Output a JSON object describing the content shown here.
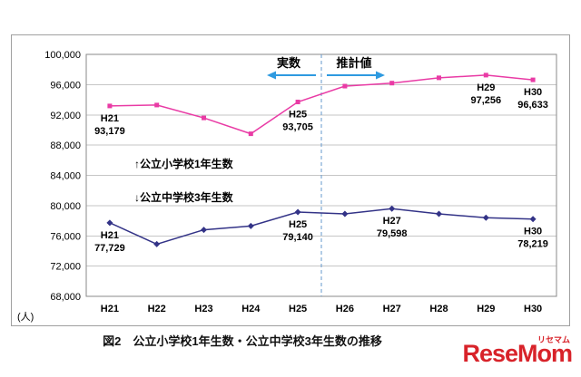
{
  "figure": {
    "caption": "図2　公立小学校1年生数・公立中学校3年生数の推移"
  },
  "logo": {
    "text": "ReseMom",
    "ruby": "リセマム",
    "color": "#d8232a"
  },
  "chart_data": {
    "type": "line",
    "unit_label": "(人)",
    "categories": [
      "H21",
      "H22",
      "H23",
      "H24",
      "H25",
      "H26",
      "H27",
      "H28",
      "H29",
      "H30"
    ],
    "ylim": [
      68000,
      100000
    ],
    "ytick_step": 4000,
    "grid": true,
    "legend_position": "none",
    "divider": {
      "after_category": "H25",
      "color": "#6699cc"
    },
    "annotations": {
      "actual": "実数",
      "estimate": "推計値",
      "arrow_color": "#2e9ae0"
    },
    "colors": {
      "grid": "#c6c6c6",
      "plot_border": "#8a8a8a",
      "outer_border": "#a0a0a0"
    },
    "series": [
      {
        "name": "公立小学校1年生数",
        "inline_label": "↑公立小学校1年生数",
        "color": "#e93ba5",
        "marker": "square",
        "values": [
          93179,
          93300,
          91600,
          89500,
          93705,
          95800,
          96200,
          96900,
          97256,
          96633
        ],
        "labeled_points": [
          {
            "category": "H21",
            "value_text": "93,179"
          },
          {
            "category": "H25",
            "value_text": "93,705"
          },
          {
            "category": "H29",
            "value_text": "97,256"
          },
          {
            "category": "H30",
            "value_text": "96,633"
          }
        ]
      },
      {
        "name": "公立中学校3年生数",
        "inline_label": "↓公立中学校3年生数",
        "color": "#333387",
        "marker": "diamond",
        "values": [
          77729,
          74900,
          76800,
          77300,
          79140,
          78900,
          79598,
          78900,
          78400,
          78219
        ],
        "labeled_points": [
          {
            "category": "H21",
            "value_text": "77,729"
          },
          {
            "category": "H25",
            "value_text": "79,140"
          },
          {
            "category": "H27",
            "value_text": "79,598"
          },
          {
            "category": "H30",
            "value_text": "78,219"
          }
        ]
      }
    ]
  }
}
